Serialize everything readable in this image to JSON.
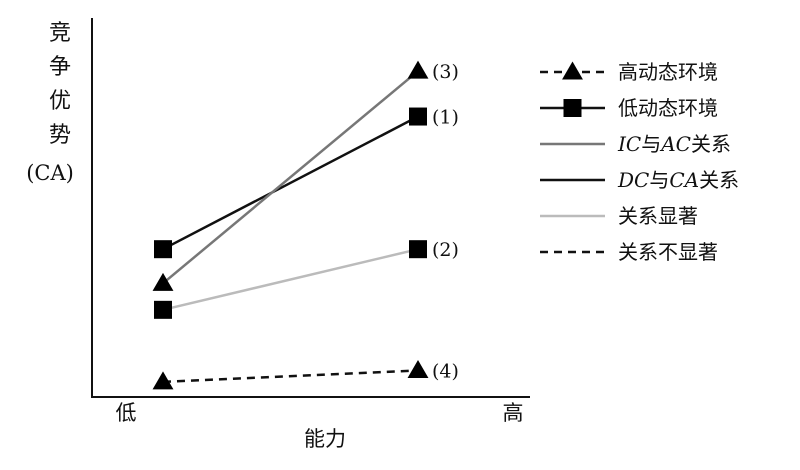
{
  "chart_data": {
    "type": "line",
    "ylabel": [
      "竞",
      "争",
      "优",
      "势"
    ],
    "ylabel_unit": "(CA)",
    "xlabel": "能力",
    "categories": [
      "低",
      "高"
    ],
    "series": [
      {
        "name": "高动态环境",
        "marker": "triangle",
        "line": "dashed",
        "line_color": "#111111",
        "values": [
          0.42,
          0.7
        ]
      },
      {
        "name": "低动态环境",
        "marker": "square",
        "line": "solid",
        "line_color": "#111111",
        "values": [
          3.9,
          7.4
        ]
      },
      {
        "name": "IC与AC关系",
        "marker": "triangle",
        "line": "solid",
        "line_color": "#777777",
        "values": [
          3.0,
          8.6
        ],
        "point_label": "(3)"
      },
      {
        "name": "DC与CA关系",
        "marker": "square",
        "line": "solid",
        "line_color": "#111111",
        "values": [
          3.9,
          7.4
        ],
        "point_label": "(1)"
      },
      {
        "name": "关系显著",
        "marker": "square",
        "line": "solid",
        "line_color": "#bbbbbb",
        "values": [
          2.3,
          3.9
        ],
        "point_label": "(2)"
      },
      {
        "name": "关系不显著",
        "marker": "triangle",
        "line": "dashed",
        "line_color": "#111111",
        "values": [
          0.4,
          0.7
        ],
        "point_label": "(4)"
      }
    ],
    "legend": {
      "placement": "right",
      "entries": [
        {
          "label_parts": [
            {
              "t": "高动态环境"
            }
          ],
          "line": "dashed",
          "color": "#111111",
          "marker": "triangle"
        },
        {
          "label_parts": [
            {
              "t": "低动态环境"
            }
          ],
          "line": "solid",
          "color": "#111111",
          "marker": "square"
        },
        {
          "label_parts": [
            {
              "t": "IC",
              "it": true
            },
            {
              "t": "与"
            },
            {
              "t": "AC",
              "it": true
            },
            {
              "t": "关系"
            }
          ],
          "line": "solid",
          "color": "#777777",
          "marker": "none"
        },
        {
          "label_parts": [
            {
              "t": "DC",
              "it": true
            },
            {
              "t": "与"
            },
            {
              "t": "CA",
              "it": true
            },
            {
              "t": "关系"
            }
          ],
          "line": "solid",
          "color": "#111111",
          "marker": "none"
        },
        {
          "label_parts": [
            {
              "t": "关系显著"
            }
          ],
          "line": "solid",
          "color": "#bbbbbb",
          "marker": "none"
        },
        {
          "label_parts": [
            {
              "t": "关系不显著"
            }
          ],
          "line": "dashed",
          "color": "#111111",
          "marker": "none"
        }
      ]
    },
    "ylim": [
      0,
      10
    ],
    "grid": false
  }
}
